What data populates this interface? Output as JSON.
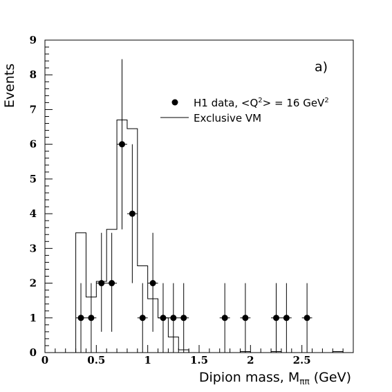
{
  "chart_data": {
    "type": "scatter",
    "panel_label": "a)",
    "xlabel": "Dipion mass, M",
    "xlabel_sub": "ππ",
    "xlabel_unit": " (GeV)",
    "ylabel": "Events",
    "xlim": [
      0,
      3.0
    ],
    "ylim": [
      0,
      9
    ],
    "x_ticks": [
      0,
      0.5,
      1,
      1.5,
      2,
      2.5
    ],
    "x_tick_labels": [
      "0",
      "0.5",
      "1",
      "1.5",
      "2",
      "2.5"
    ],
    "y_ticks": [
      0,
      1,
      2,
      3,
      4,
      5,
      6,
      7,
      8,
      9
    ],
    "y_tick_labels": [
      "0",
      "1",
      "2",
      "3",
      "4",
      "5",
      "6",
      "7",
      "8",
      "9"
    ],
    "legend": {
      "placement": "top-right",
      "data_label_pre": "H1 data, <Q",
      "data_label_sup1": "2",
      "data_label_mid": "> = 16 GeV",
      "data_label_sup2": "2",
      "mc_label": "Exclusive VM"
    },
    "data_points": [
      {
        "x": 0.35,
        "y": 1,
        "ylo": 0,
        "yhi": 2
      },
      {
        "x": 0.45,
        "y": 1,
        "ylo": 0,
        "yhi": 2
      },
      {
        "x": 0.55,
        "y": 2,
        "ylo": 0.6,
        "yhi": 3.45
      },
      {
        "x": 0.65,
        "y": 2,
        "ylo": 0.6,
        "yhi": 3.45
      },
      {
        "x": 0.75,
        "y": 6,
        "ylo": 3.55,
        "yhi": 8.45
      },
      {
        "x": 0.85,
        "y": 4,
        "ylo": 2,
        "yhi": 6
      },
      {
        "x": 0.95,
        "y": 1,
        "ylo": 0,
        "yhi": 2
      },
      {
        "x": 1.05,
        "y": 2,
        "ylo": 0.6,
        "yhi": 3.45
      },
      {
        "x": 1.15,
        "y": 1,
        "ylo": 0,
        "yhi": 2
      },
      {
        "x": 1.25,
        "y": 1,
        "ylo": 0,
        "yhi": 2
      },
      {
        "x": 1.35,
        "y": 1,
        "ylo": 0,
        "yhi": 2
      },
      {
        "x": 1.75,
        "y": 1,
        "ylo": 0,
        "yhi": 2
      },
      {
        "x": 1.95,
        "y": 1,
        "ylo": 0,
        "yhi": 2
      },
      {
        "x": 2.25,
        "y": 1,
        "ylo": 0,
        "yhi": 2
      },
      {
        "x": 2.35,
        "y": 1,
        "ylo": 0,
        "yhi": 2
      },
      {
        "x": 2.55,
        "y": 1,
        "ylo": 0,
        "yhi": 2
      }
    ],
    "mc_histogram": {
      "bin_edges": [
        0,
        0.1,
        0.2,
        0.3,
        0.4,
        0.5,
        0.6,
        0.7,
        0.8,
        0.9,
        1.0,
        1.1,
        1.2,
        1.3,
        1.4,
        1.5,
        1.6,
        1.7,
        1.8,
        1.9,
        2.0,
        2.1,
        2.2,
        2.3,
        2.4,
        2.5,
        2.6,
        2.7,
        2.8,
        2.9,
        3.0
      ],
      "values": [
        0,
        0,
        0,
        3.45,
        1.6,
        2.05,
        3.55,
        6.7,
        6.45,
        2.5,
        1.55,
        1.0,
        0.45,
        0.08,
        0,
        0,
        0,
        0,
        0,
        0.03,
        0,
        0,
        0.03,
        0,
        0,
        0,
        0,
        0,
        0.03,
        0
      ]
    }
  }
}
